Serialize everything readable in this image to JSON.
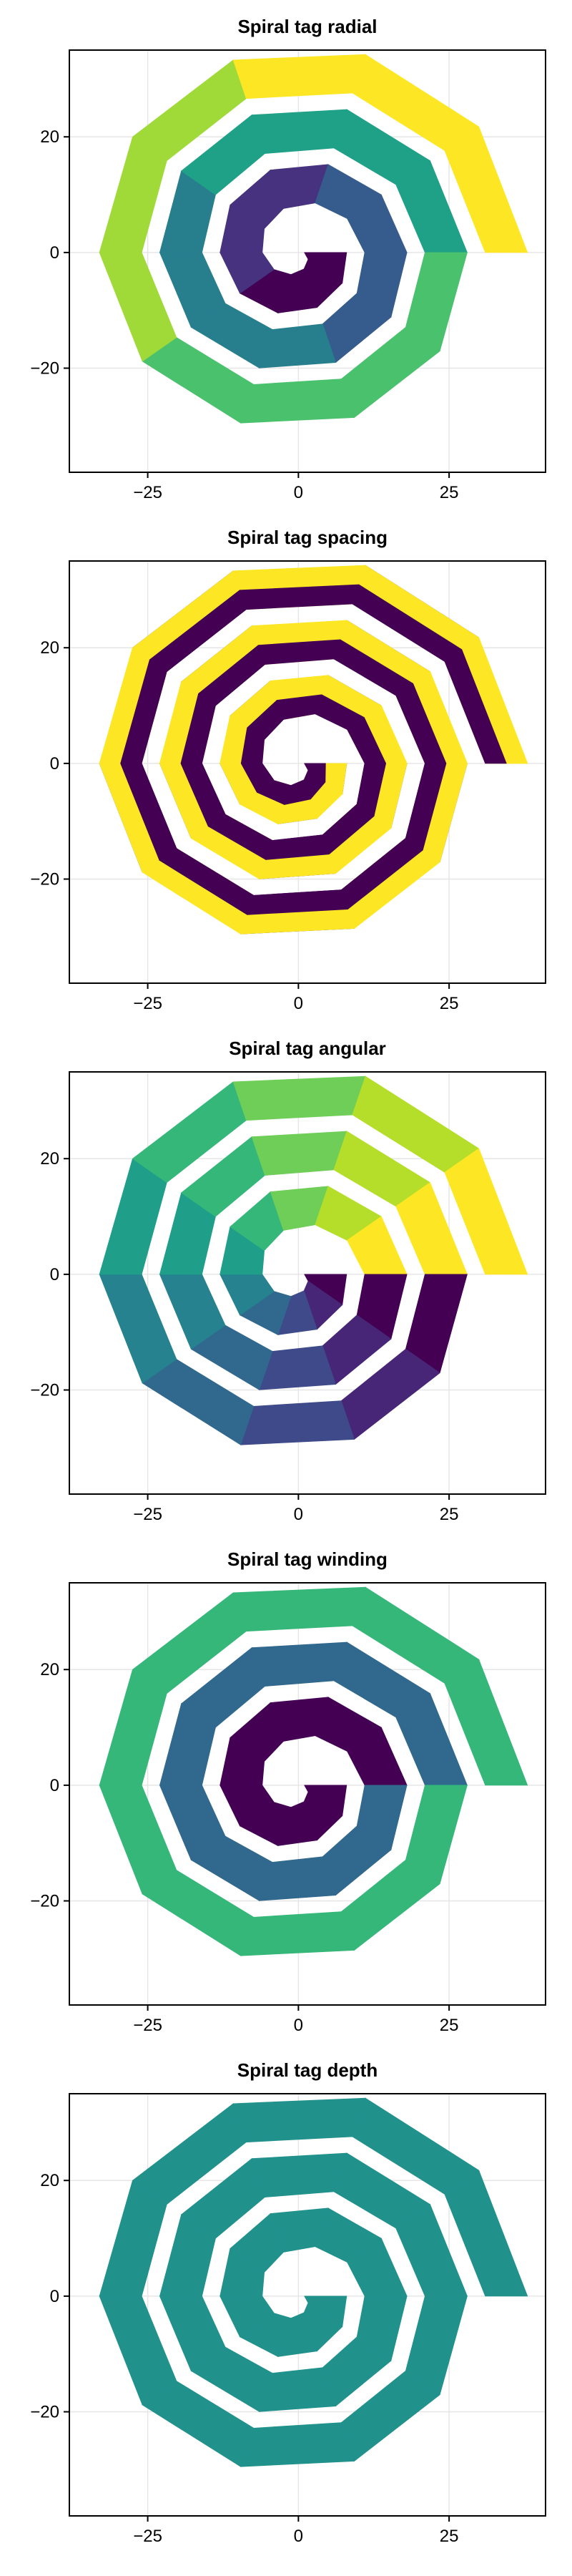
{
  "colors": {
    "viridis_ramp": [
      "#440154",
      "#46327e",
      "#365c8d",
      "#277f8e",
      "#1fa187",
      "#4ac16d",
      "#a0da39",
      "#fde725"
    ],
    "spacing_pair": [
      "#440154",
      "#fde725"
    ],
    "winding_band": [
      "#440154",
      "#31688e",
      "#35b779",
      "#fde725"
    ],
    "depth_fill": "#21918c"
  },
  "chart_data": [
    {
      "type": "area",
      "title": "Spiral tag radial",
      "xlabel": "",
      "ylabel": "",
      "xlim": [
        -38,
        41
      ],
      "ylim": [
        -38,
        35
      ],
      "xticks": [
        -25,
        0,
        25
      ],
      "yticks": [
        20,
        0,
        -20
      ],
      "grid": true,
      "legend": "none",
      "mode": "radial",
      "r_start": 8,
      "r_end": 38,
      "turns": 3,
      "sides": 10,
      "band_width": 7,
      "segments": [
        {
          "r": [
            8,
            12
          ],
          "color_index": 0
        },
        {
          "r": [
            12,
            16
          ],
          "color_index": 1
        },
        {
          "r": [
            16,
            20
          ],
          "color_index": 2
        },
        {
          "r": [
            20,
            24
          ],
          "color_index": 3
        },
        {
          "r": [
            24,
            28
          ],
          "color_index": 4
        },
        {
          "r": [
            28,
            32
          ],
          "color_index": 5
        },
        {
          "r": [
            32,
            35
          ],
          "color_index": 6
        },
        {
          "r": [
            35,
            38
          ],
          "color_index": 7
        }
      ]
    },
    {
      "type": "area",
      "title": "Spiral tag spacing",
      "xlabel": "",
      "ylabel": "",
      "xlim": [
        -38,
        41
      ],
      "ylim": [
        -38,
        35
      ],
      "xticks": [
        -25,
        0,
        25
      ],
      "yticks": [
        20,
        0,
        -20
      ],
      "grid": true,
      "legend": "none",
      "mode": "spacing",
      "r_start": 8,
      "r_end": 38,
      "turns": 3,
      "sides": 10,
      "band_width": 7,
      "stripes": 2
    },
    {
      "type": "area",
      "title": "Spiral tag angular",
      "xlabel": "",
      "ylabel": "",
      "xlim": [
        -38,
        41
      ],
      "ylim": [
        -38,
        35
      ],
      "xticks": [
        -25,
        0,
        25
      ],
      "yticks": [
        20,
        0,
        -20
      ],
      "grid": true,
      "legend": "none",
      "mode": "angular",
      "r_start": 8,
      "r_end": 38,
      "turns": 3,
      "sides": 10,
      "band_width": 7,
      "sector_colors": [
        "#440154",
        "#482677",
        "#3e4a89",
        "#31688e",
        "#26828e",
        "#1f9e89",
        "#35b779",
        "#6ece58",
        "#b5de2b",
        "#fde725"
      ]
    },
    {
      "type": "area",
      "title": "Spiral tag winding",
      "xlabel": "",
      "ylabel": "",
      "xlim": [
        -38,
        41
      ],
      "ylim": [
        -38,
        35
      ],
      "xticks": [
        -25,
        0,
        25
      ],
      "yticks": [
        20,
        0,
        -20
      ],
      "grid": true,
      "legend": "none",
      "mode": "winding",
      "r_start": 8,
      "r_end": 38,
      "turns": 3,
      "sides": 10,
      "band_width": 7
    },
    {
      "type": "area",
      "title": "Spiral tag depth",
      "xlabel": "",
      "ylabel": "",
      "xlim": [
        -38,
        41
      ],
      "ylim": [
        -38,
        35
      ],
      "xticks": [
        -25,
        0,
        25
      ],
      "yticks": [
        20,
        0,
        -20
      ],
      "grid": true,
      "legend": "none",
      "mode": "depth",
      "r_start": 8,
      "r_end": 38,
      "turns": 3,
      "sides": 10,
      "band_width": 7
    }
  ]
}
